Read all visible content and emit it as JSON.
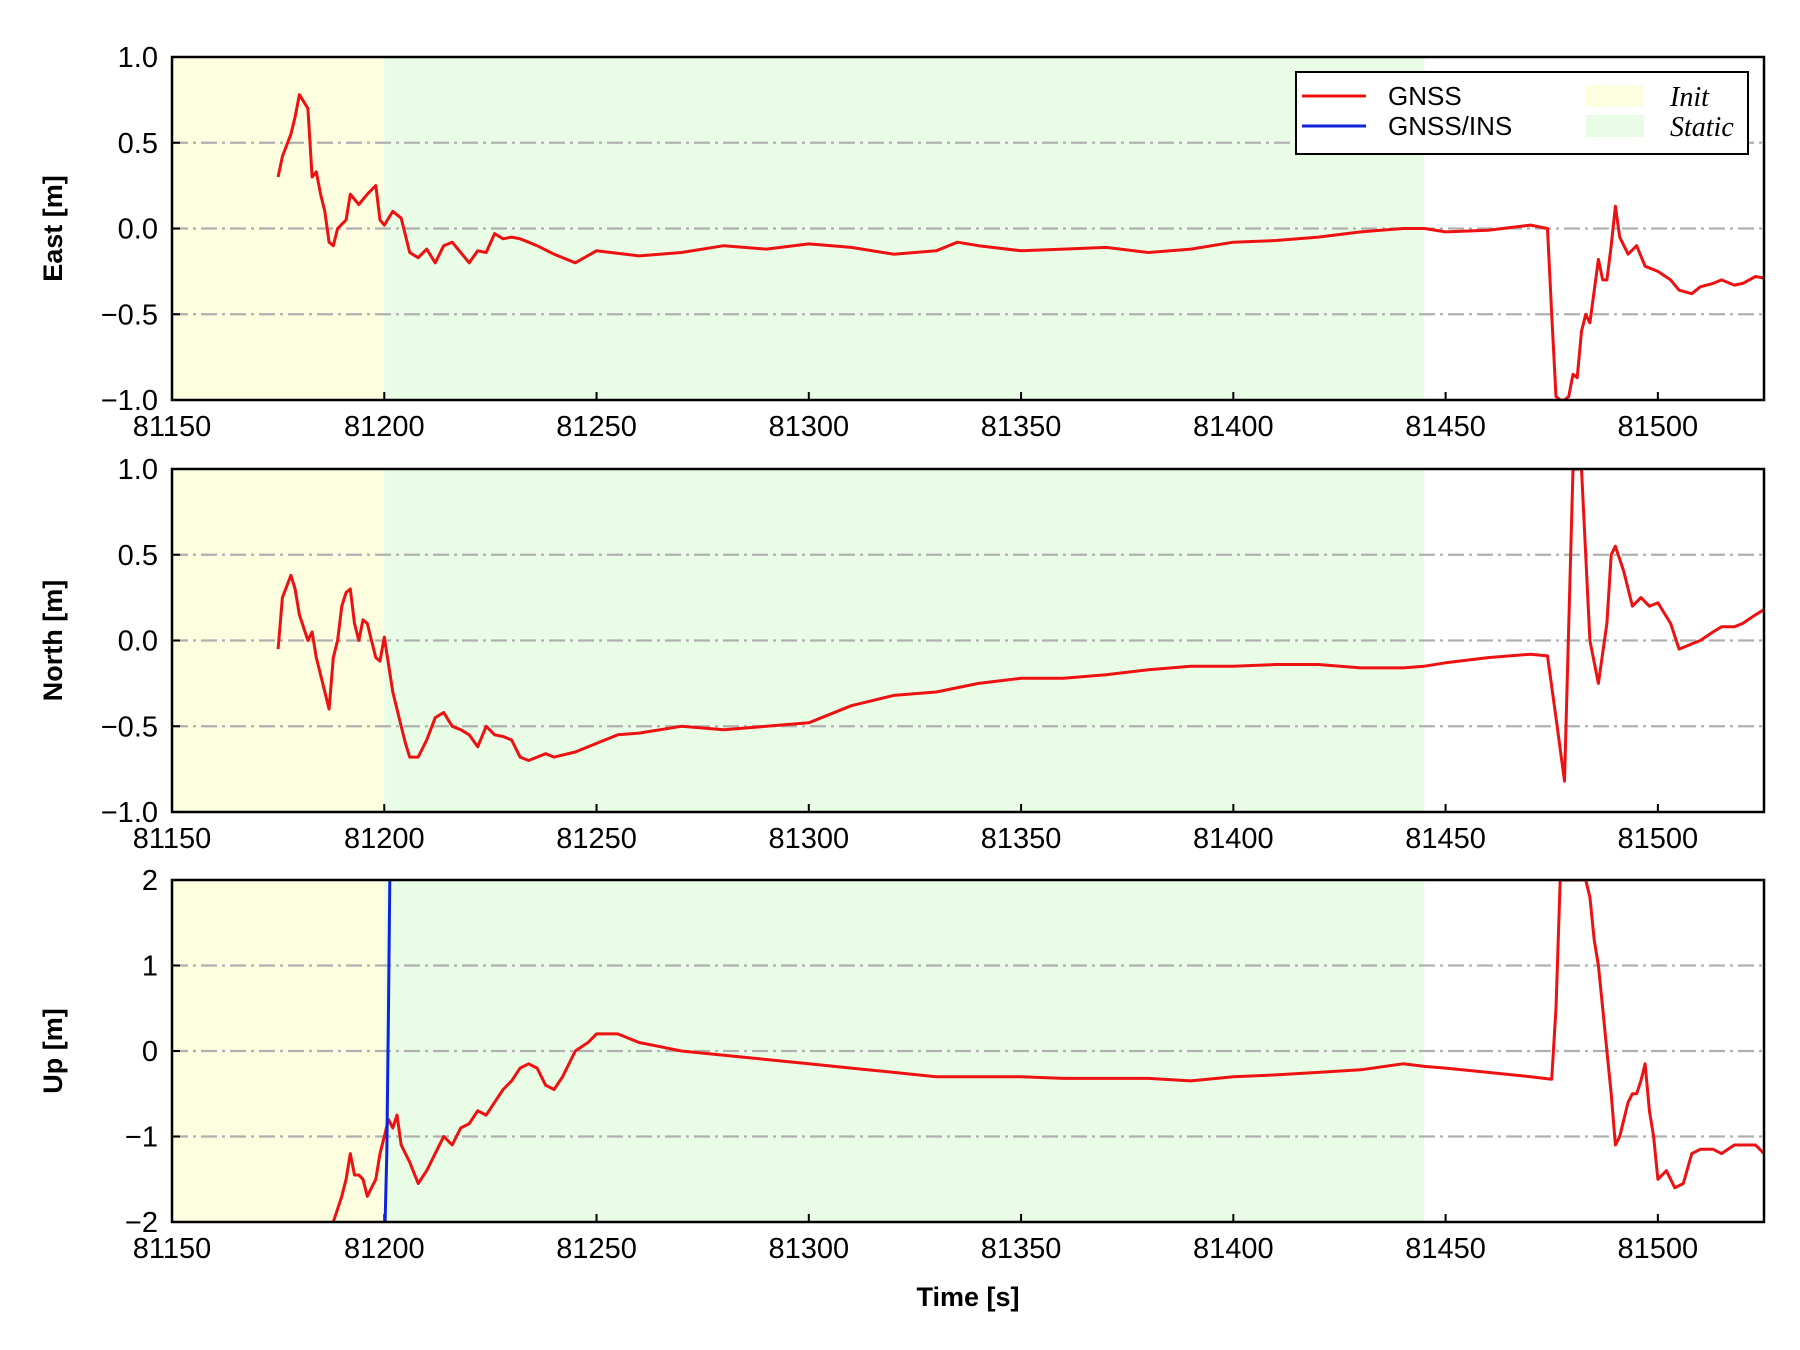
{
  "chart_data": {
    "type": "line",
    "xlabel": "Time [s]",
    "xlim": [
      81150,
      81525
    ],
    "xticks": [
      "81150",
      "81200",
      "81250",
      "81300",
      "81350",
      "81400",
      "81450",
      "81500"
    ],
    "regions": [
      {
        "name": "Init",
        "x": [
          81150,
          81200
        ],
        "color": "#fdfde0"
      },
      {
        "name": "Static",
        "x": [
          81200,
          81445
        ],
        "color": "#e9fde6"
      }
    ],
    "legend": {
      "placement": "top-right",
      "entries": [
        {
          "name": "GNSS",
          "kind": "line",
          "color": "#ee1111"
        },
        {
          "name": "GNSS/INS",
          "kind": "line",
          "color": "#1122dd"
        },
        {
          "name": "Init",
          "kind": "patch",
          "color": "#fdfde0"
        },
        {
          "name": "Static",
          "kind": "patch",
          "color": "#e9fde6"
        }
      ]
    },
    "grid": "y-dashdot",
    "panels": [
      {
        "ylabel": "East [m]",
        "ylim": [
          -1.0,
          1.0
        ],
        "yticks": [
          1.0,
          0.5,
          0.0,
          -0.5,
          -1.0
        ],
        "yticklabels": [
          "1.0",
          "0.5",
          "0.0",
          "−0.5",
          "−1.0"
        ],
        "series": [
          {
            "name": "GNSS",
            "color": "#ee1111",
            "x": [
              81175,
              81176,
              81178,
              81179,
              81180,
              81182,
              81183,
              81184,
              81185,
              81186,
              81187,
              81188,
              81189,
              81191,
              81192,
              81194,
              81196,
              81198,
              81199,
              81200,
              81202,
              81204,
              81206,
              81208,
              81210,
              81212,
              81214,
              81216,
              81218,
              81220,
              81222,
              81224,
              81226,
              81228,
              81230,
              81232,
              81234,
              81236,
              81240,
              81245,
              81250,
              81260,
              81270,
              81280,
              81290,
              81300,
              81310,
              81320,
              81330,
              81335,
              81340,
              81350,
              81360,
              81370,
              81380,
              81390,
              81400,
              81410,
              81420,
              81430,
              81440,
              81445,
              81450,
              81460,
              81470,
              81474,
              81475,
              81476,
              81477,
              81478,
              81479,
              81480,
              81481,
              81482,
              81483,
              81484,
              81486,
              81487,
              81488,
              81489,
              81490,
              81491,
              81493,
              81495,
              81497,
              81500,
              81503,
              81505,
              81508,
              81510,
              81513,
              81515,
              81518,
              81520,
              81523,
              81525
            ],
            "y": [
              0.3,
              0.42,
              0.55,
              0.65,
              0.78,
              0.7,
              0.3,
              0.33,
              0.2,
              0.1,
              -0.08,
              -0.1,
              0.0,
              0.05,
              0.2,
              0.14,
              0.2,
              0.25,
              0.05,
              0.02,
              0.1,
              0.06,
              -0.14,
              -0.17,
              -0.12,
              -0.2,
              -0.1,
              -0.08,
              -0.14,
              -0.2,
              -0.13,
              -0.14,
              -0.03,
              -0.06,
              -0.05,
              -0.06,
              -0.08,
              -0.1,
              -0.15,
              -0.2,
              -0.13,
              -0.16,
              -0.14,
              -0.1,
              -0.12,
              -0.09,
              -0.11,
              -0.15,
              -0.13,
              -0.08,
              -0.1,
              -0.13,
              -0.12,
              -0.11,
              -0.14,
              -0.12,
              -0.08,
              -0.07,
              -0.05,
              -0.02,
              0.0,
              0.0,
              -0.02,
              -0.01,
              0.02,
              0.0,
              -0.5,
              -0.98,
              -1.0,
              -1.0,
              -0.98,
              -0.85,
              -0.87,
              -0.6,
              -0.5,
              -0.55,
              -0.18,
              -0.3,
              -0.3,
              -0.1,
              0.13,
              -0.05,
              -0.15,
              -0.1,
              -0.22,
              -0.25,
              -0.3,
              -0.36,
              -0.38,
              -0.34,
              -0.32,
              -0.3,
              -0.33,
              -0.32,
              -0.28,
              -0.29
            ]
          }
        ]
      },
      {
        "ylabel": "North [m]",
        "ylim": [
          -1.0,
          1.0
        ],
        "yticks": [
          1.0,
          0.5,
          0.0,
          -0.5,
          -1.0
        ],
        "yticklabels": [
          "1.0",
          "0.5",
          "0.0",
          "−0.5",
          "−1.0"
        ],
        "series": [
          {
            "name": "GNSS",
            "color": "#ee1111",
            "x": [
              81175,
              81176,
              81178,
              81179,
              81180,
              81182,
              81183,
              81184,
              81185,
              81187,
              81188,
              81189,
              81190,
              81191,
              81192,
              81193,
              81194,
              81195,
              81196,
              81197,
              81198,
              81199,
              81200,
              81202,
              81204,
              81205,
              81206,
              81208,
              81210,
              81212,
              81214,
              81216,
              81218,
              81220,
              81222,
              81224,
              81226,
              81228,
              81230,
              81232,
              81234,
              81236,
              81238,
              81240,
              81245,
              81250,
              81255,
              81260,
              81270,
              81280,
              81290,
              81300,
              81310,
              81320,
              81330,
              81340,
              81350,
              81360,
              81370,
              81380,
              81390,
              81400,
              81410,
              81420,
              81430,
              81440,
              81445,
              81450,
              81460,
              81470,
              81474,
              81476,
              81478,
              81480,
              81482,
              81484,
              81486,
              81488,
              81489,
              81490,
              81492,
              81494,
              81496,
              81498,
              81500,
              81503,
              81505,
              81508,
              81510,
              81513,
              81515,
              81518,
              81520,
              81523,
              81525
            ],
            "y": [
              -0.05,
              0.25,
              0.38,
              0.3,
              0.15,
              0.0,
              0.05,
              -0.1,
              -0.2,
              -0.4,
              -0.1,
              0.0,
              0.2,
              0.28,
              0.3,
              0.1,
              0.0,
              0.12,
              0.1,
              0.0,
              -0.1,
              -0.12,
              0.02,
              -0.3,
              -0.5,
              -0.6,
              -0.68,
              -0.68,
              -0.58,
              -0.45,
              -0.42,
              -0.5,
              -0.52,
              -0.55,
              -0.62,
              -0.5,
              -0.55,
              -0.56,
              -0.58,
              -0.68,
              -0.7,
              -0.68,
              -0.66,
              -0.68,
              -0.65,
              -0.6,
              -0.55,
              -0.54,
              -0.5,
              -0.52,
              -0.5,
              -0.48,
              -0.38,
              -0.32,
              -0.3,
              -0.25,
              -0.22,
              -0.22,
              -0.2,
              -0.17,
              -0.15,
              -0.15,
              -0.14,
              -0.14,
              -0.16,
              -0.16,
              -0.15,
              -0.13,
              -0.1,
              -0.08,
              -0.09,
              -0.45,
              -0.82,
              1.0,
              1.0,
              0.0,
              -0.25,
              0.1,
              0.5,
              0.55,
              0.4,
              0.2,
              0.25,
              0.2,
              0.22,
              0.1,
              -0.05,
              -0.02,
              0.0,
              0.05,
              0.08,
              0.08,
              0.1,
              0.15,
              0.18
            ]
          },
          {
            "name": "GNSS/INS",
            "color": "#1122dd",
            "x": [],
            "y": []
          }
        ]
      },
      {
        "ylabel": "Up [m]",
        "ylim": [
          -2,
          2
        ],
        "yticks": [
          2,
          1,
          0,
          -1,
          -2
        ],
        "yticklabels": [
          "2",
          "1",
          "0",
          "−1",
          "−2"
        ],
        "series": [
          {
            "name": "GNSS",
            "color": "#ee1111",
            "x": [
              81188,
              81190,
              81191,
              81192,
              81193,
              81194,
              81195,
              81196,
              81197,
              81198,
              81199,
              81200,
              81201,
              81202,
              81203,
              81204,
              81206,
              81208,
              81210,
              81212,
              81214,
              81216,
              81218,
              81220,
              81222,
              81224,
              81226,
              81228,
              81230,
              81232,
              81234,
              81236,
              81238,
              81240,
              81242,
              81245,
              81248,
              81250,
              81255,
              81260,
              81265,
              81270,
              81280,
              81290,
              81300,
              81310,
              81320,
              81330,
              81340,
              81350,
              81360,
              81370,
              81380,
              81390,
              81400,
              81410,
              81420,
              81430,
              81440,
              81445,
              81450,
              81460,
              81470,
              81475,
              81476,
              81477,
              81478,
              81479,
              81480,
              81481,
              81482,
              81483,
              81484,
              81485,
              81486,
              81487,
              81488,
              81489,
              81490,
              81491,
              81492,
              81493,
              81494,
              81495,
              81496,
              81497,
              81498,
              81499,
              81500,
              81502,
              81504,
              81506,
              81508,
              81510,
              81513,
              81515,
              81518,
              81520,
              81523,
              81525
            ],
            "y": [
              -2.0,
              -1.7,
              -1.5,
              -1.2,
              -1.45,
              -1.45,
              -1.5,
              -1.7,
              -1.6,
              -1.5,
              -1.2,
              -1.0,
              -0.8,
              -0.9,
              -0.75,
              -1.1,
              -1.3,
              -1.55,
              -1.4,
              -1.2,
              -1.0,
              -1.1,
              -0.9,
              -0.85,
              -0.7,
              -0.75,
              -0.6,
              -0.45,
              -0.35,
              -0.2,
              -0.15,
              -0.2,
              -0.4,
              -0.45,
              -0.3,
              0.0,
              0.1,
              0.2,
              0.2,
              0.1,
              0.05,
              0.0,
              -0.05,
              -0.1,
              -0.15,
              -0.2,
              -0.25,
              -0.3,
              -0.3,
              -0.3,
              -0.32,
              -0.32,
              -0.32,
              -0.35,
              -0.3,
              -0.28,
              -0.25,
              -0.22,
              -0.15,
              -0.18,
              -0.2,
              -0.25,
              -0.3,
              -0.33,
              0.5,
              2.0,
              2.0,
              2.0,
              2.0,
              2.0,
              2.0,
              2.0,
              1.8,
              1.3,
              1.0,
              0.5,
              0.0,
              -0.5,
              -1.1,
              -1.0,
              -0.8,
              -0.6,
              -0.5,
              -0.5,
              -0.35,
              -0.15,
              -0.7,
              -1.0,
              -1.5,
              -1.4,
              -1.6,
              -1.55,
              -1.2,
              -1.15,
              -1.15,
              -1.2,
              -1.1,
              -1.1,
              -1.1,
              -1.2
            ]
          },
          {
            "name": "GNSS/INS",
            "color": "#1122dd",
            "x": [
              81200.2,
              81200.6,
              81201.0,
              81201.3
            ],
            "y": [
              -2.0,
              -1.2,
              0.5,
              2.0
            ]
          }
        ]
      }
    ]
  }
}
